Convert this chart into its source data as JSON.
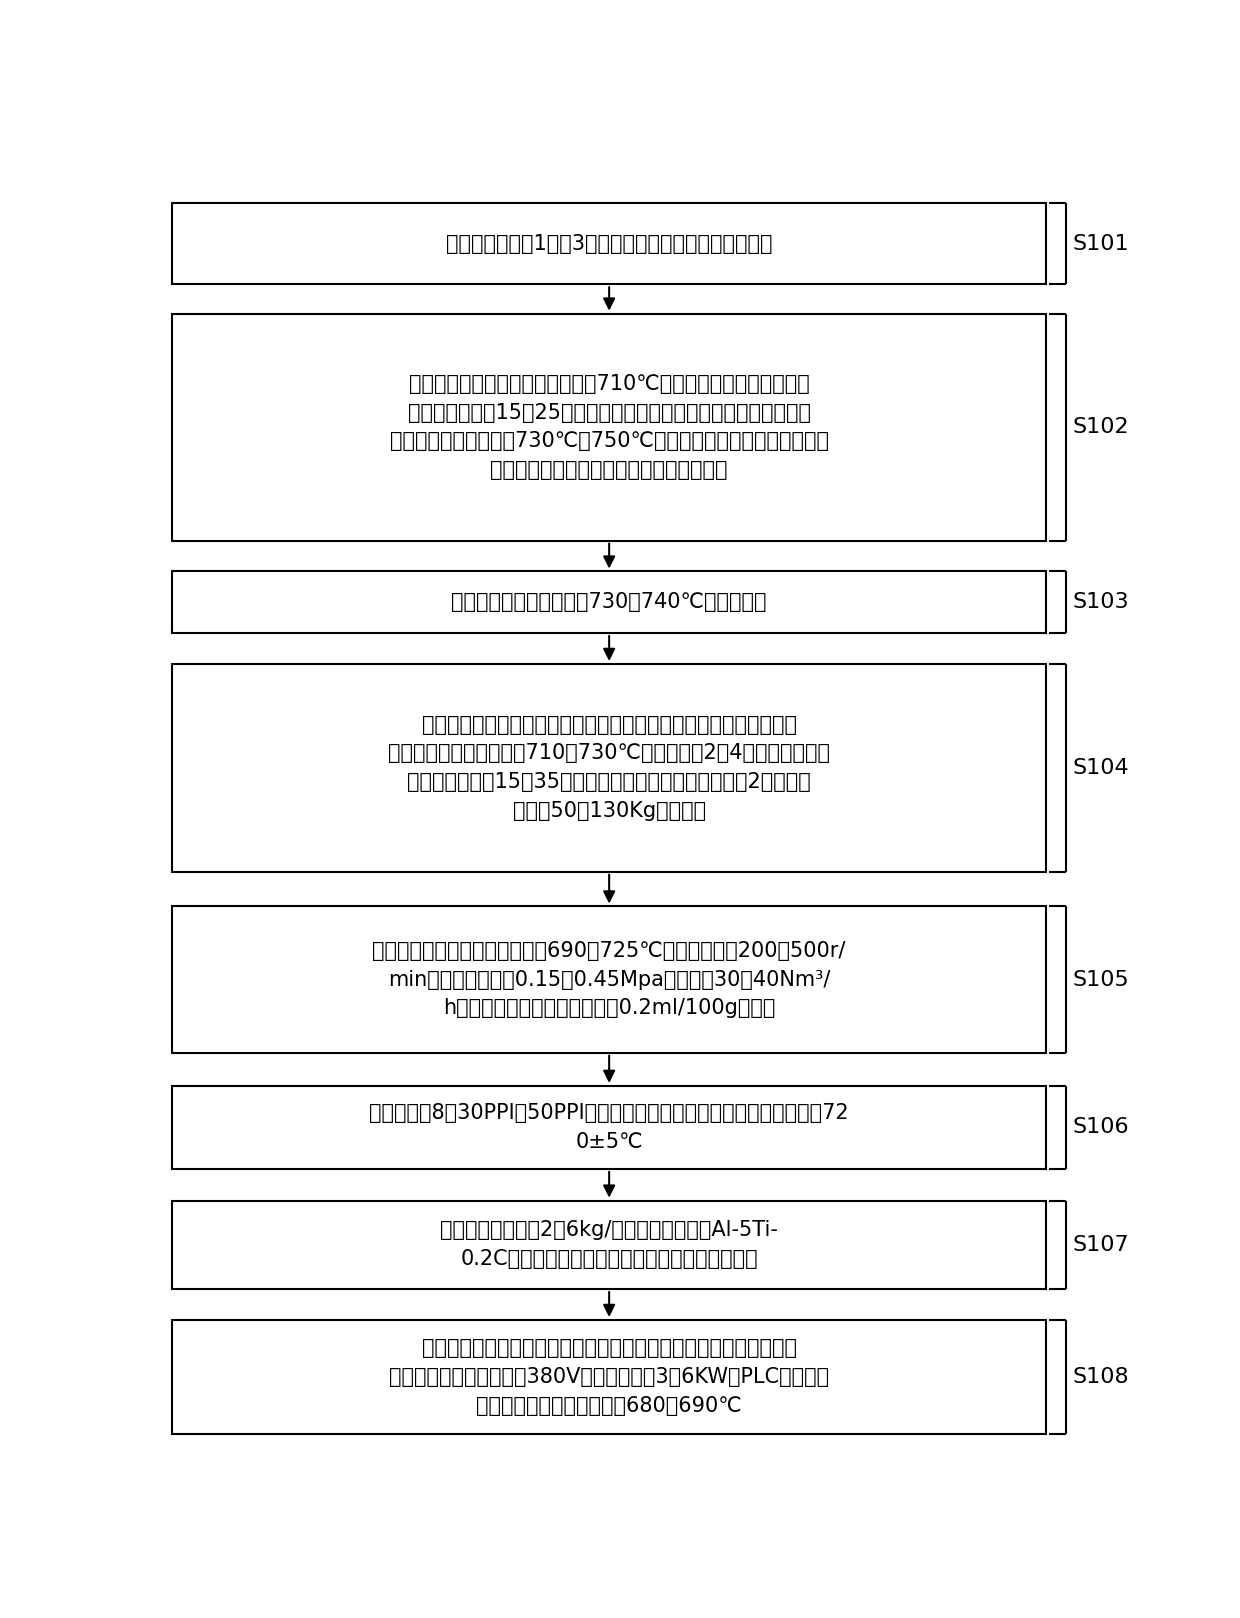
{
  "background_color": "#ffffff",
  "box_edge_color": "#000000",
  "box_fill_color": "#ffffff",
  "text_color": "#000000",
  "arrow_color": "#000000",
  "label_color": "#000000",
  "steps": [
    {
      "id": "S101",
      "label": "S101",
      "lines": [
        "生产备料：选用1系或3系铝合金，按照指定牌号进行配料"
      ]
    },
    {
      "id": "S102",
      "label": "S102",
      "lines": [
        "憔炼：加入固态铝銆，升温，温度710℃以上时，加入合金添加剂；",
        "静置后电磁搞拌15～25分钟；铝銆全部溶化后进行两次电磁搞拌；待",
        "炉内铝液溶体温度达到730℃～750℃时，进行第一次精炼、扚渣、成",
        "分调整；然后进行搞拌、第二次精炼、扚渣"
      ]
    },
    {
      "id": "S103",
      "label": "S103",
      "lines": [
        "转炉：铝液溶体温度达到730～740℃时进行转炉"
      ]
    },
    {
      "id": "S104",
      "label": "S104",
      "lines": [
        "静置处理：静置炉中用四氯化碳进行一次精炼，精炼完后进行表面扚",
        "渣，静置炉的温度控制在710～730℃，以后每陠2～4小时作一次氯气",
        "精炼，每次精炼15～35分钟，若发现后续晶粒粗大，每陠2小时向炉",
        "内添加50～130Kg冷料即可"
      ]
    },
    {
      "id": "S105",
      "label": "S105",
      "lines": [
        "去氢处理：除气筱内温度保持在690～725℃，转子转速为200～500r/",
        "min，，压力控制为0.15～0.45Mpa，流量为30～40Nm³/",
        "h，除气后溶体中氢含量控制在0.2ml/100g铝以下"
      ]
    },
    {
      "id": "S106",
      "label": "S106",
      "lines": [
        "过滤：采用8为30PPI和50PPI两级陶瓷过滤板过滤，过滤筱温度控制在　72",
        "0±5℃"
      ]
    },
    {
      "id": "S107",
      "label": "S107",
      "lines": [
        "晶粒细化处理：以2～6kg/吞铝的添加量采用Al-5Ti-",
        "0.2C晶粒细化剂对合金溶体进行晶粒变质细化处理"
      ]
    },
    {
      "id": "S108",
      "label": "S108",
      "lines": [
        "铸嘴内部溶体温度调控：通过铸嘴内部实际温度场自动调节加热元件",
        "，加热元件的工作电压为380V，工作功率为3～6KW，PLC温度调控",
        "系统的温度控制参数设置为680～690℃"
      ]
    }
  ]
}
